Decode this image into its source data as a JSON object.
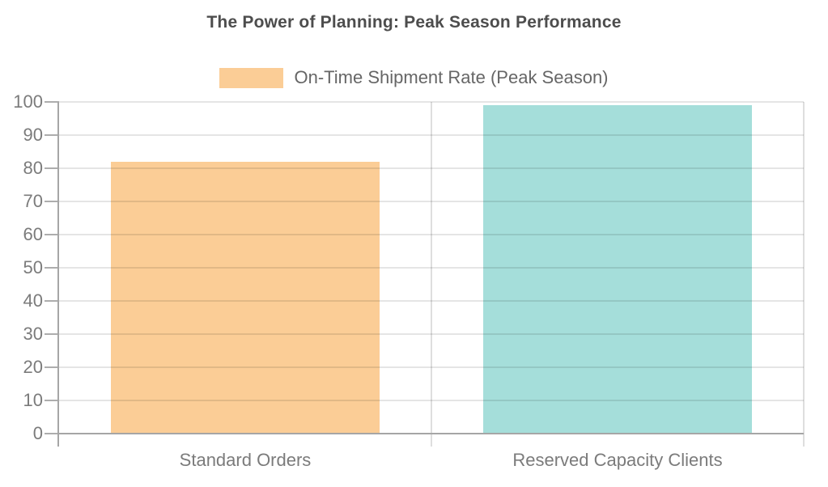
{
  "title": "The Power of Planning: Peak Season Performance",
  "legend": {
    "label": "On-Time Shipment Rate (Peak Season)",
    "swatch_color": "#FBCD96"
  },
  "chart_data": {
    "type": "bar",
    "title": "The Power of Planning: Peak Season Performance",
    "categories": [
      "Standard Orders",
      "Reserved Capacity Clients"
    ],
    "series": [
      {
        "name": "On-Time Shipment Rate (Peak Season)",
        "values": [
          82,
          99
        ]
      }
    ],
    "bar_colors": [
      "#FBCD96",
      "#A5DEDA"
    ],
    "xlabel": "",
    "ylabel": "",
    "ylim": [
      0,
      100
    ],
    "yticks": [
      0,
      10,
      20,
      30,
      40,
      50,
      60,
      70,
      80,
      90,
      100
    ],
    "grid": true,
    "legend_position": "top"
  },
  "colors": {
    "title_text": "#4d4d4d",
    "legend_text": "#666666",
    "tick_text": "#7b7b7b",
    "axis_line": "#a6a6a6",
    "gridline": "#e3e3e3",
    "background": "#ffffff"
  }
}
